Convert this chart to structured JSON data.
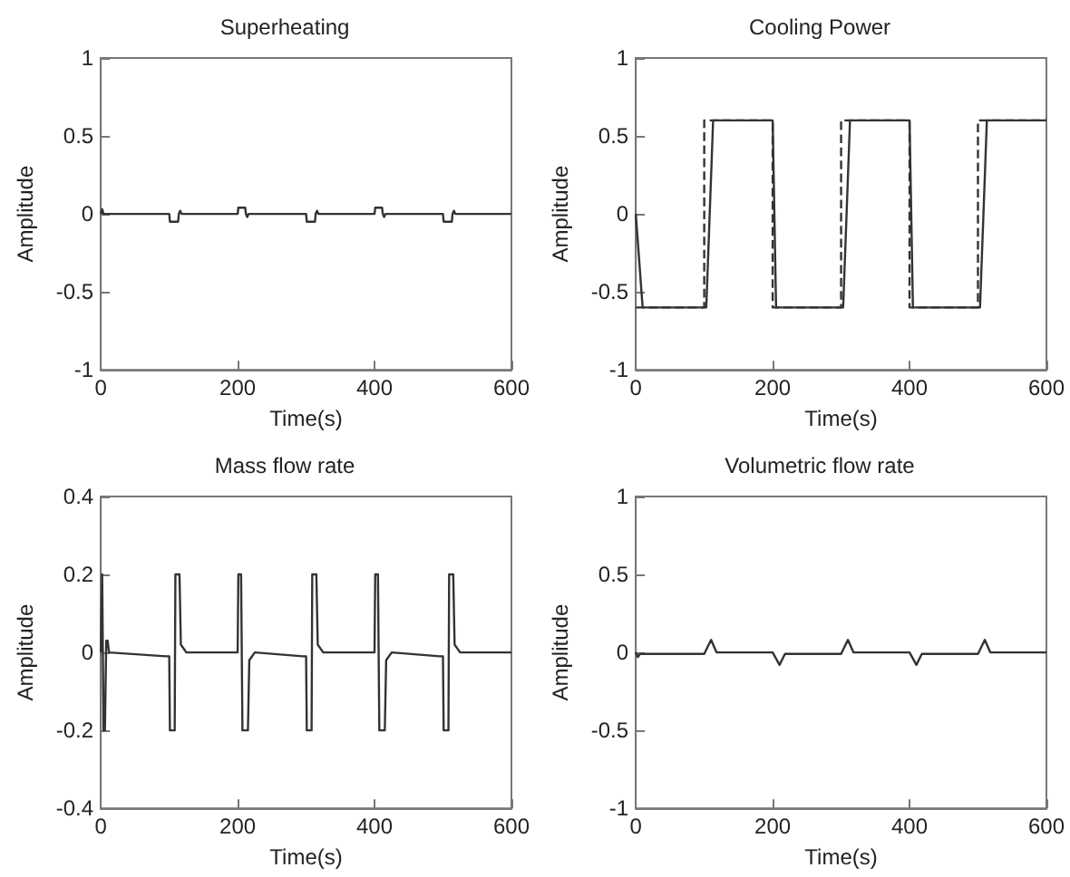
{
  "chart_data": [
    {
      "type": "line",
      "title": "Superheating",
      "xlabel": "Time(s)",
      "ylabel": "Amplitude",
      "xlim": [
        0,
        600
      ],
      "xticks": [
        0,
        200,
        400,
        600
      ],
      "ylim": [
        -1,
        1
      ],
      "yticks": [
        -1,
        -0.5,
        0,
        0.5,
        1
      ],
      "grid": false,
      "marker": "none",
      "line_style": "solid",
      "series": [
        {
          "color": "#333333",
          "x": [
            0,
            2,
            4,
            100,
            101,
            113,
            114,
            116,
            118,
            200,
            201,
            211,
            212,
            214,
            216,
            300,
            301,
            313,
            314,
            316,
            318,
            400,
            401,
            411,
            412,
            414,
            416,
            500,
            501,
            513,
            514,
            516,
            518,
            600
          ],
          "values": [
            0,
            0.03,
            0,
            0,
            -0.05,
            -0.05,
            0,
            0.02,
            0,
            0,
            0.04,
            0.04,
            0,
            -0.02,
            0,
            0,
            -0.05,
            -0.05,
            0,
            0.02,
            0,
            0,
            0.04,
            0.04,
            0,
            -0.02,
            0,
            0,
            -0.05,
            -0.05,
            0,
            0.02,
            0,
            0
          ]
        }
      ]
    },
    {
      "type": "line",
      "title": "Cooling Power",
      "xlabel": "Time(s)",
      "ylabel": "Amplitude",
      "xlim": [
        0,
        600
      ],
      "xticks": [
        0,
        200,
        400,
        600
      ],
      "ylim": [
        -1,
        1
      ],
      "yticks": [
        -1,
        -0.5,
        0,
        0.5,
        1
      ],
      "grid": false,
      "marker": "none",
      "line_style": "solid",
      "series": [
        {
          "color": "#333333",
          "x": [
            0,
            10,
            103,
            113,
            200,
            205,
            303,
            313,
            400,
            405,
            503,
            513,
            600
          ],
          "values": [
            0,
            -0.6,
            -0.6,
            0.6,
            0.6,
            -0.6,
            -0.6,
            0.6,
            0.6,
            -0.6,
            -0.6,
            0.6,
            0.6
          ]
        },
        {
          "color": "#333333",
          "line_style": "dashed",
          "x": [
            0,
            100,
            100,
            200,
            200,
            300,
            300,
            400,
            400,
            500,
            500,
            600
          ],
          "values": [
            -0.6,
            -0.6,
            0.6,
            0.6,
            -0.6,
            -0.6,
            0.6,
            0.6,
            -0.6,
            -0.6,
            0.6,
            0.6
          ]
        }
      ]
    },
    {
      "type": "line",
      "title": "Mass flow rate",
      "xlabel": "Time(s)",
      "ylabel": "Amplitude",
      "xlim": [
        0,
        600
      ],
      "xticks": [
        0,
        200,
        400,
        600
      ],
      "ylim": [
        -0.4,
        0.4
      ],
      "yticks": [
        -0.4,
        -0.2,
        0,
        0.2,
        0.4
      ],
      "grid": false,
      "marker": "none",
      "line_style": "solid",
      "series": [
        {
          "color": "#333333",
          "x": [
            0,
            2,
            4,
            6,
            8,
            10,
            12,
            95,
            100,
            101,
            108,
            109,
            115,
            117,
            125,
            200,
            201,
            205,
            207,
            215,
            217,
            225,
            295,
            300,
            301,
            308,
            309,
            315,
            317,
            325,
            400,
            401,
            405,
            407,
            415,
            417,
            425,
            495,
            500,
            501,
            508,
            509,
            515,
            517,
            525,
            600
          ],
          "values": [
            0,
            0.2,
            -0.2,
            -0.2,
            0.03,
            0.03,
            0,
            -0.01,
            -0.01,
            -0.2,
            -0.2,
            0.2,
            0.2,
            0.02,
            0,
            0,
            0.2,
            0.2,
            -0.2,
            -0.2,
            -0.02,
            0,
            -0.01,
            -0.01,
            -0.2,
            -0.2,
            0.2,
            0.2,
            0.02,
            0,
            0,
            0.2,
            0.2,
            -0.2,
            -0.2,
            -0.02,
            0,
            -0.01,
            -0.01,
            -0.2,
            -0.2,
            0.2,
            0.2,
            0.02,
            0,
            0
          ]
        }
      ]
    },
    {
      "type": "line",
      "title": "Volumetric flow rate",
      "xlabel": "Time(s)",
      "ylabel": "Amplitude",
      "xlim": [
        0,
        600
      ],
      "xticks": [
        0,
        200,
        400,
        600
      ],
      "ylim": [
        -1,
        1
      ],
      "yticks": [
        -1,
        -0.5,
        0,
        0.5,
        1
      ],
      "grid": false,
      "marker": "none",
      "line_style": "solid",
      "series": [
        {
          "color": "#333333",
          "x": [
            0,
            3,
            6,
            100,
            110,
            118,
            200,
            210,
            218,
            300,
            310,
            318,
            400,
            410,
            418,
            500,
            510,
            518,
            600
          ],
          "values": [
            0,
            -0.03,
            -0.01,
            -0.01,
            0.08,
            0,
            0,
            -0.08,
            -0.01,
            -0.01,
            0.08,
            0,
            0,
            -0.08,
            -0.01,
            -0.01,
            0.08,
            0,
            0
          ]
        }
      ]
    }
  ]
}
